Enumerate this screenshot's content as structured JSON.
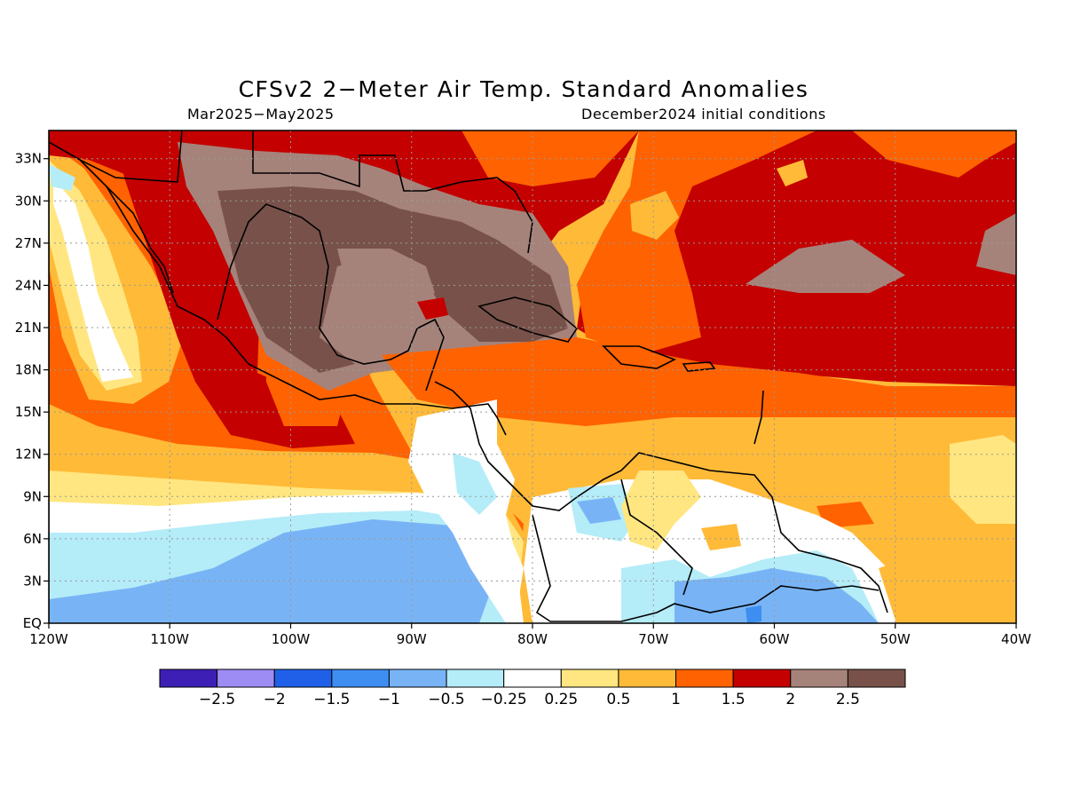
{
  "title": "CFSv2 2−Meter Air Temp. Standard Anomalies",
  "subtitle_left": "Mar2025−May2025",
  "subtitle_right": "December2024 initial conditions",
  "map": {
    "lon_range": [
      -120,
      -40
    ],
    "lat_range": [
      0,
      35
    ],
    "lat_ticks": [
      {
        "value": 33,
        "label": "33N"
      },
      {
        "value": 30,
        "label": "30N"
      },
      {
        "value": 27,
        "label": "27N"
      },
      {
        "value": 24,
        "label": "24N"
      },
      {
        "value": 21,
        "label": "21N"
      },
      {
        "value": 18,
        "label": "18N"
      },
      {
        "value": 15,
        "label": "15N"
      },
      {
        "value": 12,
        "label": "12N"
      },
      {
        "value": 9,
        "label": "9N"
      },
      {
        "value": 6,
        "label": "6N"
      },
      {
        "value": 3,
        "label": "3N"
      },
      {
        "value": 0,
        "label": "EQ"
      }
    ],
    "lon_ticks": [
      {
        "value": -120,
        "label": "120W"
      },
      {
        "value": -110,
        "label": "110W"
      },
      {
        "value": -100,
        "label": "100W"
      },
      {
        "value": -90,
        "label": "90W"
      },
      {
        "value": -80,
        "label": "80W"
      },
      {
        "value": -70,
        "label": "70W"
      },
      {
        "value": -60,
        "label": "60W"
      },
      {
        "value": -50,
        "label": "50W"
      },
      {
        "value": -40,
        "label": "40W"
      }
    ],
    "grid": true
  },
  "colorbar": {
    "colors": [
      "#3d1fb5",
      "#9e8cf5",
      "#2060e8",
      "#3d8ef0",
      "#78b4f5",
      "#b4ecf8",
      "#ffffff",
      "#ffe680",
      "#ffba38",
      "#ff6200",
      "#c40000",
      "#a6837a",
      "#78524a"
    ],
    "labels": [
      "−2.5",
      "−2",
      "−1.5",
      "−1",
      "−0.5",
      "−0.25",
      "0.25",
      "0.5",
      "1",
      "1.5",
      "2",
      "2.5"
    ]
  }
}
